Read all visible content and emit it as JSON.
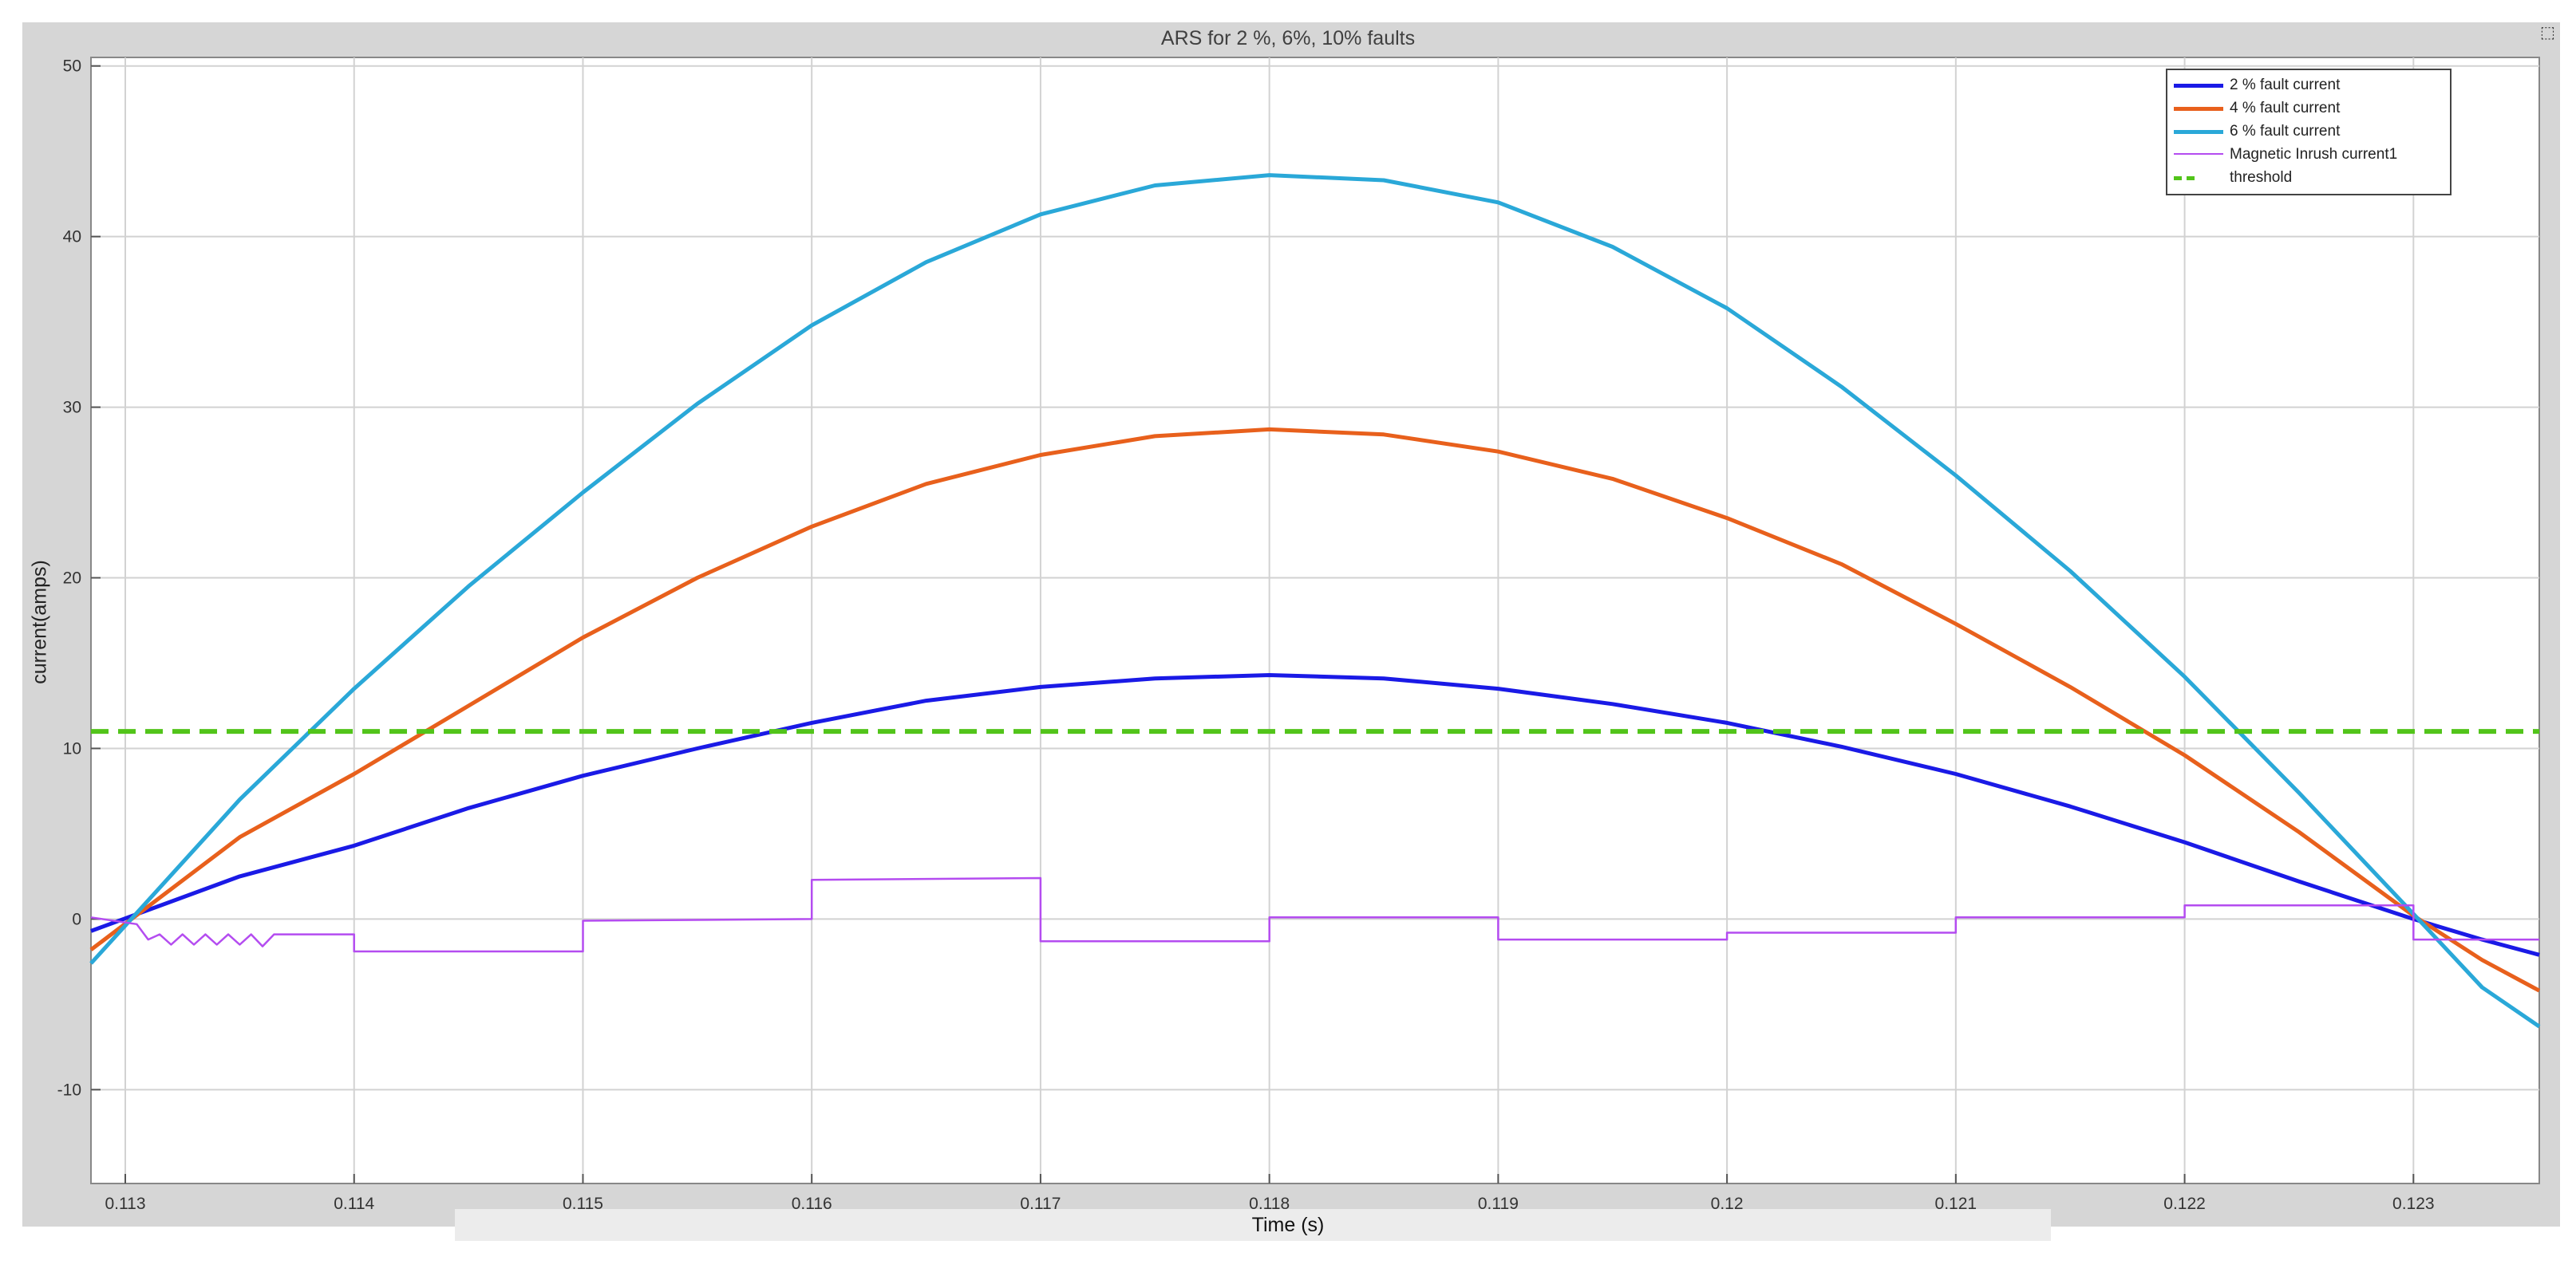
{
  "window": {
    "corner_icon": "dock-icon"
  },
  "chart_data": {
    "type": "line",
    "title": "ARS for 2 %, 6%, 10% faults",
    "xlabel": "Time (s)",
    "ylabel": "current(amps)",
    "xlim": [
      0.11285,
      0.12355
    ],
    "ylim": [
      -15.5,
      50.5
    ],
    "xticks": [
      0.113,
      0.114,
      0.115,
      0.116,
      0.117,
      0.118,
      0.119,
      0.12,
      0.121,
      0.122,
      0.123
    ],
    "xtick_labels": [
      "0.113",
      "0.114",
      "0.115",
      "0.116",
      "0.117",
      "0.118",
      "0.119",
      "0.12",
      "0.121",
      "0.122",
      "0.123"
    ],
    "yticks": [
      -10,
      0,
      10,
      20,
      30,
      40,
      50
    ],
    "ytick_labels": [
      "-10",
      "0",
      "10",
      "20",
      "30",
      "40",
      "50"
    ],
    "grid": true,
    "legend_position": "top-right",
    "series": [
      {
        "name": "2 % fault current",
        "color": "#1a1ae6",
        "x": [
          0.11285,
          0.1135,
          0.114,
          0.1145,
          0.115,
          0.1155,
          0.116,
          0.1165,
          0.117,
          0.1175,
          0.118,
          0.1185,
          0.119,
          0.1195,
          0.12,
          0.1205,
          0.121,
          0.1215,
          0.122,
          0.1225,
          0.123,
          0.1233,
          0.12355
        ],
        "y": [
          -0.7,
          2.5,
          4.3,
          6.5,
          8.4,
          10.0,
          11.5,
          12.8,
          13.6,
          14.1,
          14.3,
          14.1,
          13.5,
          12.6,
          11.5,
          10.1,
          8.5,
          6.6,
          4.5,
          2.2,
          0.0,
          -1.2,
          -2.1
        ]
      },
      {
        "name": "4 % fault current",
        "color": "#e8601c",
        "x": [
          0.11285,
          0.1135,
          0.114,
          0.1145,
          0.115,
          0.1155,
          0.116,
          0.1165,
          0.117,
          0.1175,
          0.118,
          0.1185,
          0.119,
          0.1195,
          0.12,
          0.1205,
          0.121,
          0.1215,
          0.122,
          0.1225,
          0.123,
          0.1233,
          0.12355
        ],
        "y": [
          -1.8,
          4.8,
          8.5,
          12.5,
          16.5,
          20.0,
          23.0,
          25.5,
          27.2,
          28.3,
          28.7,
          28.4,
          27.4,
          25.8,
          23.5,
          20.8,
          17.3,
          13.6,
          9.6,
          5.1,
          0.2,
          -2.4,
          -4.2
        ]
      },
      {
        "name": "6 % fault current",
        "color": "#2aa8d8",
        "x": [
          0.11285,
          0.1135,
          0.114,
          0.1145,
          0.115,
          0.1155,
          0.116,
          0.1165,
          0.117,
          0.1175,
          0.118,
          0.1185,
          0.119,
          0.1195,
          0.12,
          0.1205,
          0.121,
          0.1215,
          0.122,
          0.1225,
          0.123,
          0.1233,
          0.12355
        ],
        "y": [
          -2.6,
          7.0,
          13.5,
          19.5,
          25.0,
          30.2,
          34.8,
          38.5,
          41.3,
          43.0,
          43.6,
          43.3,
          42.0,
          39.4,
          35.8,
          31.2,
          26.0,
          20.4,
          14.2,
          7.4,
          0.3,
          -4.0,
          -6.3
        ]
      },
      {
        "name": "Magnetic Inrush current1",
        "color": "#b44cf0",
        "x": [
          0.11285,
          0.11305,
          0.1131,
          0.11315,
          0.1132,
          0.11325,
          0.1133,
          0.11335,
          0.1134,
          0.11345,
          0.1135,
          0.11355,
          0.1136,
          0.11365,
          0.1137,
          0.114,
          0.114,
          0.115,
          0.115,
          0.116,
          0.116,
          0.117,
          0.117,
          0.118,
          0.118,
          0.119,
          0.119,
          0.12,
          0.12,
          0.121,
          0.121,
          0.122,
          0.122,
          0.123,
          0.123,
          0.12355
        ],
        "y": [
          0.1,
          -0.3,
          -1.2,
          -0.9,
          -1.5,
          -0.9,
          -1.5,
          -0.9,
          -1.5,
          -0.9,
          -1.5,
          -0.9,
          -1.6,
          -0.9,
          -0.9,
          -0.9,
          -1.9,
          -1.9,
          -0.1,
          0.0,
          2.3,
          2.4,
          -1.3,
          -1.3,
          0.1,
          0.1,
          -1.2,
          -1.2,
          -0.8,
          -0.8,
          0.1,
          0.1,
          0.8,
          0.8,
          -1.2,
          -1.2
        ]
      },
      {
        "name": "threshold",
        "color": "#52c41a",
        "dashed": true,
        "x": [
          0.11285,
          0.12355
        ],
        "y": [
          11,
          11
        ]
      }
    ]
  }
}
